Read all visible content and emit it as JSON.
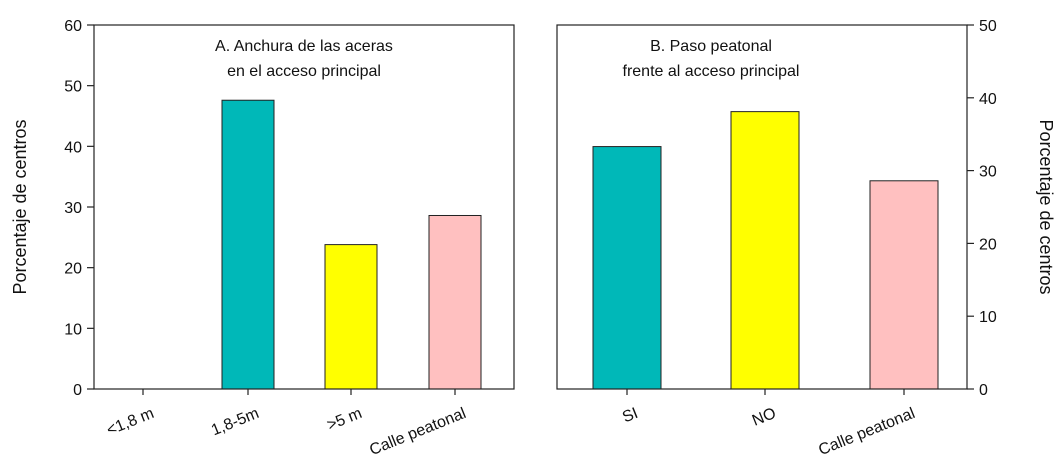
{
  "chart_data": [
    {
      "type": "bar",
      "title": [
        "A. Anchura de las aceras",
        "en el acceso principal"
      ],
      "ylabel": "Porcentaje de centros",
      "ylim": [
        0,
        60
      ],
      "yticks": [
        0,
        10,
        20,
        30,
        40,
        50,
        60
      ],
      "categories": [
        "<1,8 m",
        "1,8-5m",
        ">5 m",
        "Calle peatonal"
      ],
      "values": [
        0,
        47.6,
        23.8,
        28.6
      ],
      "colors": [
        "#00b8b8",
        "#00b8b8",
        "#ffff00",
        "#ffc0c0"
      ],
      "axis_side": "left",
      "grid": false
    },
    {
      "type": "bar",
      "title": [
        "B. Paso peatonal",
        "frente al acceso principal"
      ],
      "ylabel": "Porcentaje de centros",
      "ylim": [
        0,
        50
      ],
      "yticks": [
        0,
        10,
        20,
        30,
        40,
        50
      ],
      "categories": [
        "SI",
        "NO",
        "Calle peatonal"
      ],
      "values": [
        33.3,
        38.1,
        28.6
      ],
      "colors": [
        "#00b8b8",
        "#ffff00",
        "#ffc0c0"
      ],
      "axis_side": "right",
      "grid": false
    }
  ]
}
